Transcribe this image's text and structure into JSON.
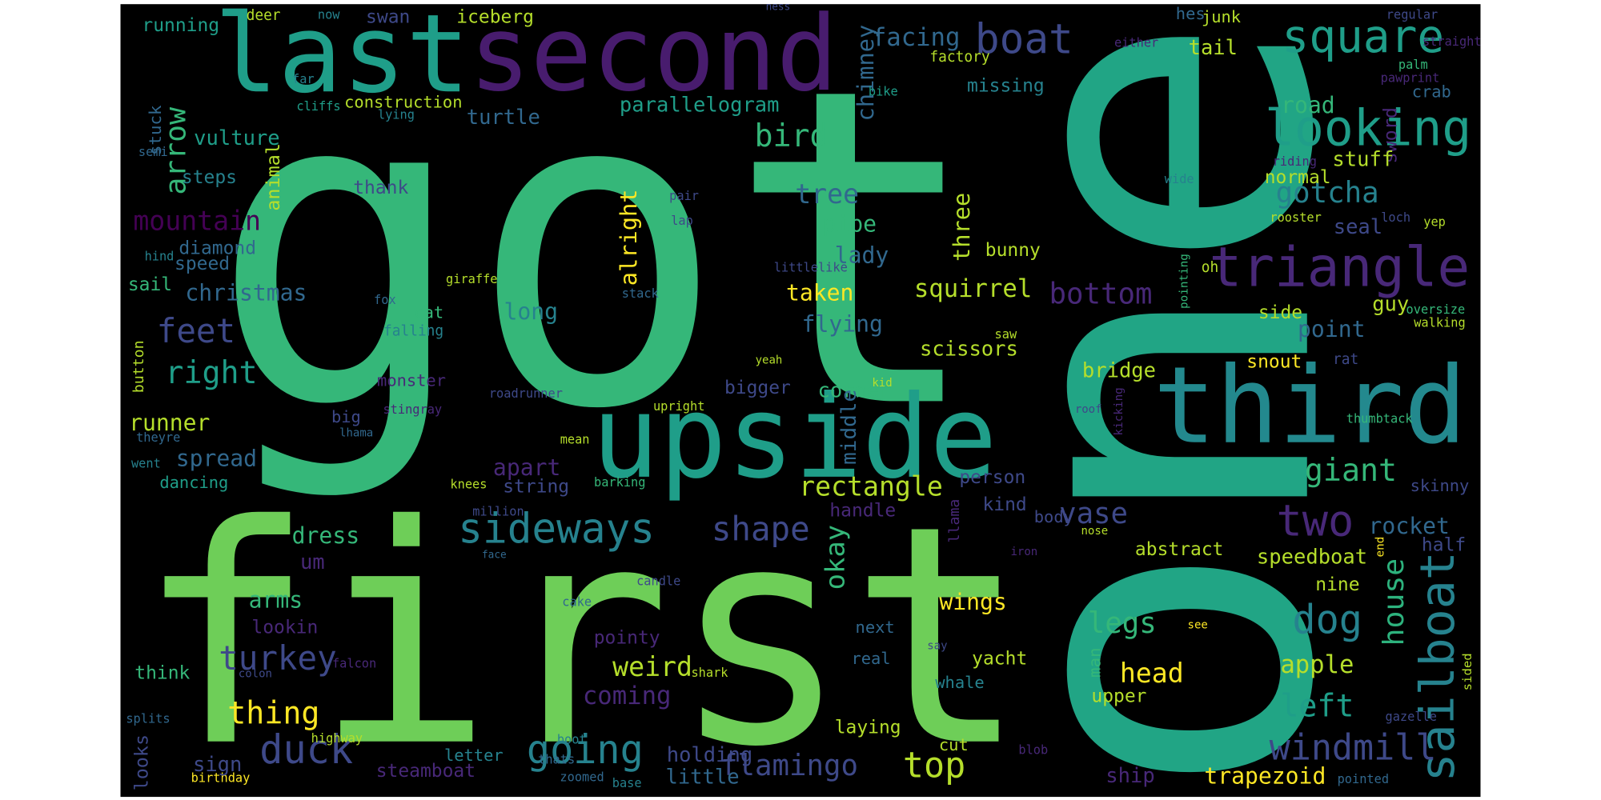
{
  "words": [
    {
      "text": "got",
      "color": "#35b779"
    },
    {
      "text": "first",
      "color": "#6ece58"
    },
    {
      "text": "one",
      "color": "#21a585"
    },
    {
      "text": "last",
      "color": "#1f9e89"
    },
    {
      "text": "second",
      "color": "#481c6e"
    },
    {
      "text": "upside",
      "color": "#1f9e89"
    },
    {
      "text": "third",
      "color": "#23898e"
    },
    {
      "text": "boat",
      "color": "#3e4989"
    },
    {
      "text": "square",
      "color": "#1f9e89"
    },
    {
      "text": "looking",
      "color": "#1f9e89"
    },
    {
      "text": "triangle",
      "color": "#482878"
    },
    {
      "text": "sideways",
      "color": "#26828e"
    },
    {
      "text": "two",
      "color": "#482878"
    },
    {
      "text": "sailboat",
      "color": "#26828e"
    },
    {
      "text": "house",
      "color": "#2db27d"
    },
    {
      "text": "dog",
      "color": "#26828e"
    },
    {
      "text": "apple",
      "color": "#b5de2b"
    },
    {
      "text": "left",
      "color": "#1f9e89"
    },
    {
      "text": "windmill",
      "color": "#3e4989"
    },
    {
      "text": "ship",
      "color": "#482878"
    },
    {
      "text": "trapezoid",
      "color": "#fde725"
    },
    {
      "text": "top",
      "color": "#b5de2b"
    },
    {
      "text": "flamingo",
      "color": "#3e4989"
    },
    {
      "text": "going",
      "color": "#26828e"
    },
    {
      "text": "duck",
      "color": "#3e4989"
    },
    {
      "text": "thing",
      "color": "#fde725"
    },
    {
      "text": "turkey",
      "color": "#3e4989"
    },
    {
      "text": "weird",
      "color": "#b5de2b"
    },
    {
      "text": "coming",
      "color": "#482878"
    },
    {
      "text": "shape",
      "color": "#3e4989"
    },
    {
      "text": "vase",
      "color": "#3e4989"
    },
    {
      "text": "rectangle",
      "color": "#b5de2b"
    },
    {
      "text": "giant",
      "color": "#35b779"
    },
    {
      "text": "point",
      "color": "#31688e"
    },
    {
      "text": "guy",
      "color": "#b5de2b"
    },
    {
      "text": "side",
      "color": "#b5de2b"
    },
    {
      "text": "bottom",
      "color": "#482878"
    },
    {
      "text": "squirrel",
      "color": "#b5de2b"
    },
    {
      "text": "taken",
      "color": "#fde725"
    },
    {
      "text": "lady",
      "color": "#31688e"
    },
    {
      "text": "tree",
      "color": "#31688e"
    },
    {
      "text": "gotcha",
      "color": "#26828e"
    },
    {
      "text": "bird",
      "color": "#35b779"
    },
    {
      "text": "parallelogram",
      "color": "#1f9e89"
    },
    {
      "text": "facing",
      "color": "#31688e"
    },
    {
      "text": "chimney",
      "color": "#31688e"
    },
    {
      "text": "road",
      "color": "#35b779"
    },
    {
      "text": "tail",
      "color": "#b5de2b"
    },
    {
      "text": "junk",
      "color": "#b5de2b"
    },
    {
      "text": "hes",
      "color": "#31688e"
    },
    {
      "text": "missing",
      "color": "#26828e"
    },
    {
      "text": "factory",
      "color": "#b5de2b"
    },
    {
      "text": "iceberg",
      "color": "#b5de2b"
    },
    {
      "text": "swan",
      "color": "#3e4989"
    },
    {
      "text": "running",
      "color": "#1f9e89"
    },
    {
      "text": "deer",
      "color": "#b5de2b"
    },
    {
      "text": "now",
      "color": "#26828e"
    },
    {
      "text": "ness",
      "color": "#3e4989"
    },
    {
      "text": "either",
      "color": "#482878"
    },
    {
      "text": "regular",
      "color": "#3e4989"
    },
    {
      "text": "straight",
      "color": "#482878"
    },
    {
      "text": "palm",
      "color": "#35b779"
    },
    {
      "text": "pawprint",
      "color": "#482878"
    },
    {
      "text": "crab",
      "color": "#31688e"
    },
    {
      "text": "sword",
      "color": "#482878"
    },
    {
      "text": "stuff",
      "color": "#b5de2b"
    },
    {
      "text": "normal",
      "color": "#b5de2b"
    },
    {
      "text": "riding",
      "color": "#482878"
    },
    {
      "text": "wide",
      "color": "#26828e"
    },
    {
      "text": "rooster",
      "color": "#b5de2b"
    },
    {
      "text": "seal",
      "color": "#3e4989"
    },
    {
      "text": "loch",
      "color": "#3e4989"
    },
    {
      "text": "yep",
      "color": "#b5de2b"
    },
    {
      "text": "oh",
      "color": "#b5de2b"
    },
    {
      "text": "pointing",
      "color": "#35b779"
    },
    {
      "text": "bunny",
      "color": "#b5de2b"
    },
    {
      "text": "three",
      "color": "#b5de2b"
    },
    {
      "text": "alright",
      "color": "#fde725"
    },
    {
      "text": "pipe",
      "color": "#35b779"
    },
    {
      "text": "mountain",
      "color": "#440154"
    },
    {
      "text": "arrow",
      "color": "#35b779"
    },
    {
      "text": "construction",
      "color": "#b5de2b"
    },
    {
      "text": "turtle",
      "color": "#31688e"
    },
    {
      "text": "vulture",
      "color": "#1f9e89"
    },
    {
      "text": "stuck",
      "color": "#31688e"
    },
    {
      "text": "semi",
      "color": "#31688e"
    },
    {
      "text": "steps",
      "color": "#26828e"
    },
    {
      "text": "animal",
      "color": "#b5de2b"
    },
    {
      "text": "thank",
      "color": "#3e4989"
    },
    {
      "text": "diamond",
      "color": "#31688e"
    },
    {
      "text": "speed",
      "color": "#31688e"
    },
    {
      "text": "hind",
      "color": "#26828e"
    },
    {
      "text": "sail",
      "color": "#35b779"
    },
    {
      "text": "christmas",
      "color": "#31688e"
    },
    {
      "text": "feet",
      "color": "#3e4989"
    },
    {
      "text": "right",
      "color": "#1f9e89"
    },
    {
      "text": "runner",
      "color": "#b5de2b"
    },
    {
      "text": "spread",
      "color": "#31688e"
    },
    {
      "text": "dancing",
      "color": "#1f9e89"
    },
    {
      "text": "big",
      "color": "#3e4989"
    },
    {
      "text": "monster",
      "color": "#482878"
    },
    {
      "text": "stingray",
      "color": "#482878"
    },
    {
      "text": "lhama",
      "color": "#31688e"
    },
    {
      "text": "theyre",
      "color": "#31688e"
    },
    {
      "text": "went",
      "color": "#26828e"
    },
    {
      "text": "apart",
      "color": "#482878"
    },
    {
      "text": "string",
      "color": "#3e4989"
    },
    {
      "text": "mean",
      "color": "#b5de2b"
    },
    {
      "text": "knees",
      "color": "#b5de2b"
    },
    {
      "text": "barking",
      "color": "#35b779"
    },
    {
      "text": "dress",
      "color": "#35b779"
    },
    {
      "text": "um",
      "color": "#482878"
    },
    {
      "text": "arms",
      "color": "#35b779"
    },
    {
      "text": "lookin",
      "color": "#482878"
    },
    {
      "text": "think",
      "color": "#35b779"
    },
    {
      "text": "falcon",
      "color": "#482878"
    },
    {
      "text": "colon",
      "color": "#3e4989"
    },
    {
      "text": "splits",
      "color": "#31688e"
    },
    {
      "text": "highway",
      "color": "#b5de2b"
    },
    {
      "text": "birthday",
      "color": "#fde725"
    },
    {
      "text": "sign",
      "color": "#3e4989"
    },
    {
      "text": "looks",
      "color": "#3e4989"
    },
    {
      "text": "letter",
      "color": "#26828e"
    },
    {
      "text": "steamboat",
      "color": "#482878"
    },
    {
      "text": "thats",
      "color": "#31688e"
    },
    {
      "text": "zoomed",
      "color": "#31688e"
    },
    {
      "text": "base",
      "color": "#26828e"
    },
    {
      "text": "holding",
      "color": "#3e4989"
    },
    {
      "text": "little",
      "color": "#31688e"
    },
    {
      "text": "boot",
      "color": "#26828e"
    },
    {
      "text": "pointy",
      "color": "#482878"
    },
    {
      "text": "cake",
      "color": "#31688e"
    },
    {
      "text": "candle",
      "color": "#3e4989"
    },
    {
      "text": "face",
      "color": "#31688e"
    },
    {
      "text": "million",
      "color": "#3e4989"
    },
    {
      "text": "long",
      "color": "#26828e"
    },
    {
      "text": "cat",
      "color": "#35b779"
    },
    {
      "text": "fox",
      "color": "#31688e"
    },
    {
      "text": "falling",
      "color": "#26828e"
    },
    {
      "text": "button",
      "color": "#b5de2b"
    },
    {
      "text": "giraffe",
      "color": "#b5de2b"
    },
    {
      "text": "stack",
      "color": "#31688e"
    },
    {
      "text": "lap",
      "color": "#3e4989"
    },
    {
      "text": "pair",
      "color": "#3e4989"
    },
    {
      "text": "littlelike",
      "color": "#3e4989"
    },
    {
      "text": "flying",
      "color": "#31688e"
    },
    {
      "text": "scissors",
      "color": "#b5de2b"
    },
    {
      "text": "corner",
      "color": "#35b779"
    },
    {
      "text": "bigger",
      "color": "#3e4989"
    },
    {
      "text": "middle",
      "color": "#31688e"
    },
    {
      "text": "okay",
      "color": "#35b779"
    },
    {
      "text": "handle",
      "color": "#482878"
    },
    {
      "text": "person",
      "color": "#3e4989"
    },
    {
      "text": "kind",
      "color": "#3e4989"
    },
    {
      "text": "llama",
      "color": "#482878"
    },
    {
      "text": "body",
      "color": "#3e4989"
    },
    {
      "text": "nose",
      "color": "#b5de2b"
    },
    {
      "text": "iron",
      "color": "#482878"
    },
    {
      "text": "speedboat",
      "color": "#b5de2b"
    },
    {
      "text": "abstract",
      "color": "#b5de2b"
    },
    {
      "text": "half",
      "color": "#3e4989"
    },
    {
      "text": "rocket",
      "color": "#31688e"
    },
    {
      "text": "skinny",
      "color": "#3e4989"
    },
    {
      "text": "end",
      "color": "#fde725"
    },
    {
      "text": "nine",
      "color": "#b5de2b"
    },
    {
      "text": "legs",
      "color": "#35b779"
    },
    {
      "text": "head",
      "color": "#fde725"
    },
    {
      "text": "man",
      "color": "#35b779"
    },
    {
      "text": "upper",
      "color": "#b5de2b"
    },
    {
      "text": "see",
      "color": "#fde725"
    },
    {
      "text": "wings",
      "color": "#fde725"
    },
    {
      "text": "next",
      "color": "#31688e"
    },
    {
      "text": "say",
      "color": "#3e4989"
    },
    {
      "text": "real",
      "color": "#31688e"
    },
    {
      "text": "yacht",
      "color": "#b5de2b"
    },
    {
      "text": "whale",
      "color": "#26828e"
    },
    {
      "text": "shark",
      "color": "#b5de2b"
    },
    {
      "text": "laying",
      "color": "#b5de2b"
    },
    {
      "text": "cut",
      "color": "#b5de2b"
    },
    {
      "text": "blob",
      "color": "#482878"
    },
    {
      "text": "sided",
      "color": "#b5de2b"
    },
    {
      "text": "gazelle",
      "color": "#3e4989"
    },
    {
      "text": "pointed",
      "color": "#31688e"
    },
    {
      "text": "snout",
      "color": "#fde725"
    },
    {
      "text": "rat",
      "color": "#3e4989"
    },
    {
      "text": "bridge",
      "color": "#b5de2b"
    },
    {
      "text": "roof",
      "color": "#3e4989"
    },
    {
      "text": "kicking",
      "color": "#482878"
    },
    {
      "text": "thumbtack",
      "color": "#35b779"
    },
    {
      "text": "walking",
      "color": "#b5de2b"
    },
    {
      "text": "oversize",
      "color": "#35b779"
    },
    {
      "text": "saw",
      "color": "#b5de2b"
    },
    {
      "text": "yeah",
      "color": "#b5de2b"
    },
    {
      "text": "kid",
      "color": "#b5de2b"
    },
    {
      "text": "upright",
      "color": "#b5de2b"
    },
    {
      "text": "roadrunner",
      "color": "#3e4989"
    },
    {
      "text": "cliffs",
      "color": "#1f9e89"
    },
    {
      "text": "far",
      "color": "#26828e"
    },
    {
      "text": "lying",
      "color": "#26828e"
    },
    {
      "text": "bike",
      "color": "#1f9e89"
    }
  ]
}
